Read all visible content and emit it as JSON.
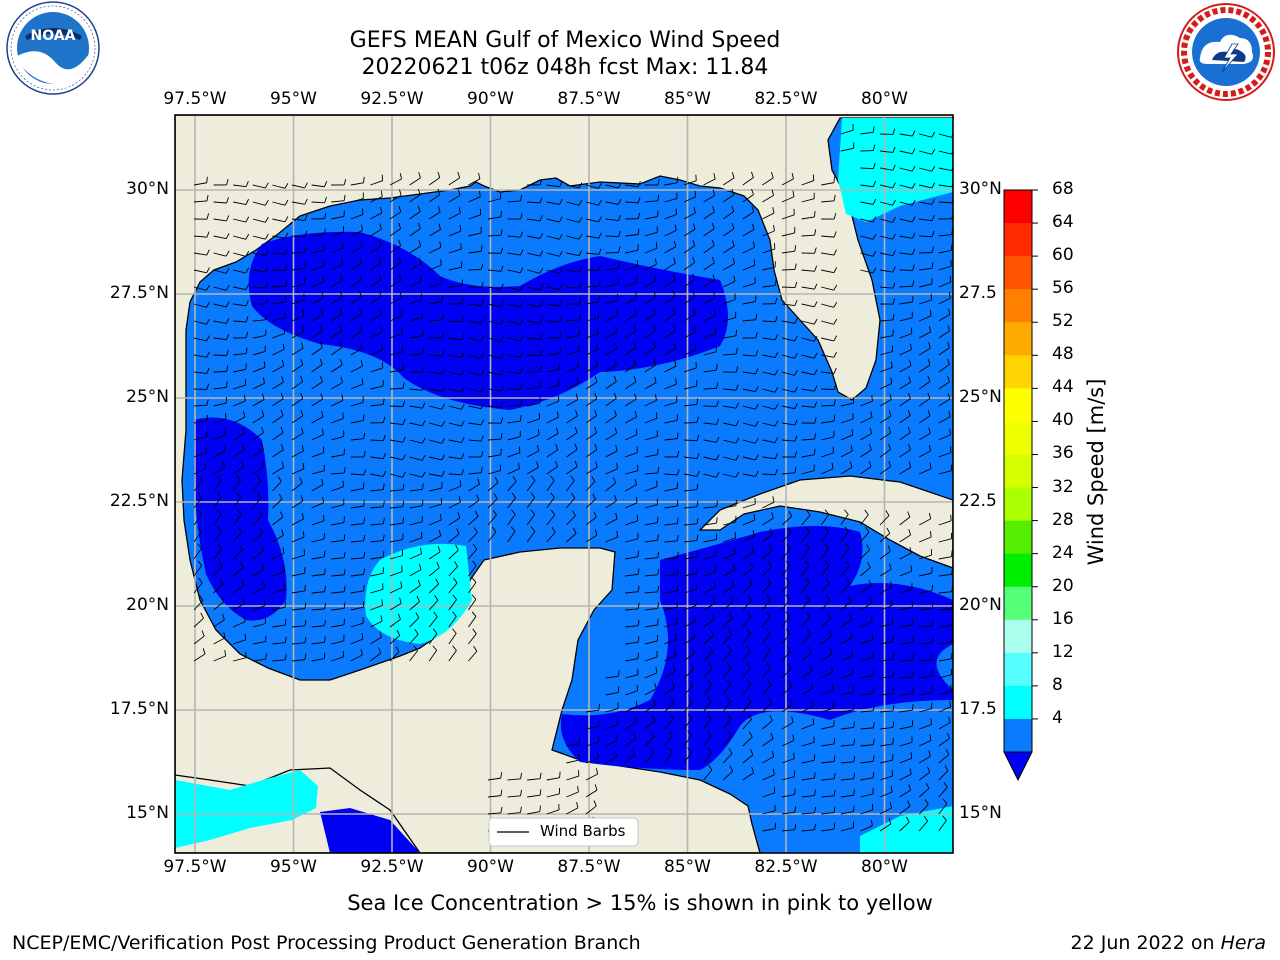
{
  "header": {
    "title_line1": "GEFS MEAN Gulf of Mexico Wind Speed",
    "title_line2": "20220621 t06z 048h fcst   Max: 11.84"
  },
  "logos": {
    "left": {
      "name": "NOAA",
      "ring_text": "NATIONAL OCEANIC AND ATMOSPHERIC ADMINISTRATION · U.S. DEPARTMENT OF COMMERCE",
      "center_text": "NOAA"
    },
    "right": {
      "name": "National Weather Service",
      "ring_text": "NATIONAL WEATHER SERVICE"
    }
  },
  "map": {
    "lon_ticks": [
      "97.5°W",
      "95°W",
      "92.5°W",
      "90°W",
      "87.5°W",
      "85°W",
      "82.5°W",
      "80°W"
    ],
    "lat_ticks_left": [
      "30°N",
      "27.5°N",
      "25°N",
      "22.5°N",
      "20°N",
      "17.5°N",
      "15°N"
    ],
    "lat_ticks_right": [
      "30°N",
      "27.5",
      "25°N",
      "22.5",
      "20°N",
      "17.5",
      "15°N"
    ],
    "legend_label": "Wind Barbs",
    "colors": {
      "land": "#eeeddb",
      "level_4_8": "#0a7bff",
      "level_0_4": "#0000f3",
      "level_8_12": "#00ffff",
      "grid": "#b5b5b5"
    }
  },
  "colorbar": {
    "label": "Wind Speed [m/s]",
    "ticks": [
      "68",
      "64",
      "60",
      "56",
      "52",
      "48",
      "44",
      "40",
      "36",
      "32",
      "28",
      "24",
      "20",
      "16",
      "12",
      "8",
      "4"
    ],
    "colors": [
      "#ff0000",
      "#ff2a00",
      "#ff5500",
      "#ff8000",
      "#ffaa00",
      "#ffd400",
      "#ffff00",
      "#eeff00",
      "#d4ff00",
      "#aaff00",
      "#55ee00",
      "#00ee00",
      "#55ff77",
      "#aaffee",
      "#55ffff",
      "#00ffff",
      "#0a7bff"
    ],
    "extend_color": "#0000f3"
  },
  "footer": {
    "ice_note": "Sea Ice Concentration > 15% is shown in pink to yellow",
    "credit": "NCEP/EMC/Verification Post Processing Product Generation Branch",
    "date_prefix": "22 Jun 2022 on ",
    "machine": "Hera"
  }
}
